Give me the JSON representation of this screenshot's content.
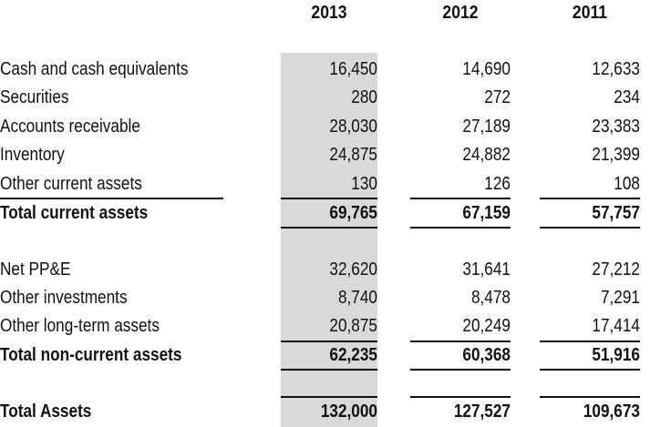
{
  "headers": [
    "2013",
    "2012",
    "2011"
  ],
  "rows": [
    {
      "label": "Cash and cash equivalents",
      "values": [
        "16,450",
        "14,690",
        "12,633"
      ],
      "bold": false
    },
    {
      "label": "Securities",
      "values": [
        "280",
        "272",
        "234"
      ],
      "bold": false
    },
    {
      "label": "Accounts receivable",
      "values": [
        "28,030",
        "27,189",
        "23,383"
      ],
      "bold": false
    },
    {
      "label": "Inventory",
      "values": [
        "24,875",
        "24,882",
        "21,399"
      ],
      "bold": false
    },
    {
      "label": "Other current assets",
      "values": [
        "130",
        "126",
        "108"
      ],
      "bold": false
    },
    {
      "label": "Total current assets",
      "values": [
        "69,765",
        "67,159",
        "57,757"
      ],
      "bold": true
    },
    {
      "label": "Net PP&E",
      "values": [
        "32,620",
        "31,641",
        "27,212"
      ],
      "bold": false
    },
    {
      "label": "Other investments",
      "values": [
        "8,740",
        "8,478",
        "7,291"
      ],
      "bold": false
    },
    {
      "label": "Other long-term assets",
      "values": [
        "20,875",
        "20,249",
        "17,414"
      ],
      "bold": false
    },
    {
      "label": "Total non-current assets",
      "values": [
        "62,235",
        "60,368",
        "51,916"
      ],
      "bold": true
    },
    {
      "label": "Total Assets",
      "values": [
        "132,000",
        "127,527",
        "109,673"
      ],
      "bold": true
    }
  ],
  "colors": {
    "highlight_column": "#d9d9d9",
    "text": "#111111",
    "rule": "#111111"
  }
}
